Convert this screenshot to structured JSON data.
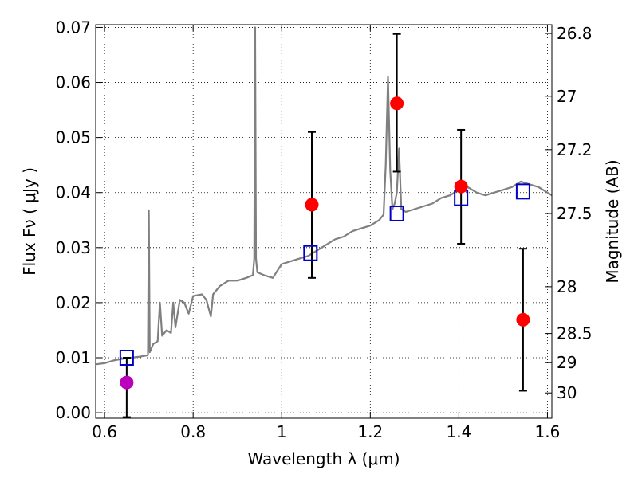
{
  "chart_data": {
    "type": "scatter",
    "xlabel": "Wavelength  λ (μm)",
    "ylabel": "Flux  Fν  ( μJy )",
    "y2label": "Magnitude (AB)",
    "xlim": [
      0.58,
      1.61
    ],
    "ylim": [
      -0.001,
      0.0705
    ],
    "grid": true,
    "x_ticks": [
      0.6,
      0.8,
      1.0,
      1.2,
      1.4,
      1.6
    ],
    "x_tick_labels": [
      "0.6",
      "0.8",
      "1",
      "1.2",
      "1.4",
      "1.6"
    ],
    "y_ticks": [
      0.0,
      0.01,
      0.02,
      0.03,
      0.04,
      0.05,
      0.06,
      0.07
    ],
    "y_tick_labels": [
      "0.00",
      "0.01",
      "0.02",
      "0.03",
      "0.04",
      "0.05",
      "0.06",
      "0.07"
    ],
    "y2_ticks": [
      {
        "label": "26.8",
        "flux": 0.0689
      },
      {
        "label": "27",
        "flux": 0.0575
      },
      {
        "label": "27.2",
        "flux": 0.0478
      },
      {
        "label": "27.5",
        "flux": 0.0362
      },
      {
        "label": "28",
        "flux": 0.0229
      },
      {
        "label": "28.5",
        "flux": 0.0144
      },
      {
        "label": "29",
        "flux": 0.0091
      },
      {
        "label": "30",
        "flux": 0.0036
      }
    ],
    "series": [
      {
        "role": "model-spectrum",
        "color": "#808080",
        "points": [
          [
            0.58,
            0.0088
          ],
          [
            0.6,
            0.009
          ],
          [
            0.62,
            0.0095
          ],
          [
            0.64,
            0.0098
          ],
          [
            0.66,
            0.01
          ],
          [
            0.68,
            0.0102
          ],
          [
            0.695,
            0.0104
          ],
          [
            0.698,
            0.0105
          ],
          [
            0.7,
            0.0368
          ],
          [
            0.702,
            0.011
          ],
          [
            0.71,
            0.0125
          ],
          [
            0.72,
            0.013
          ],
          [
            0.725,
            0.02
          ],
          [
            0.73,
            0.014
          ],
          [
            0.74,
            0.015
          ],
          [
            0.75,
            0.0145
          ],
          [
            0.755,
            0.02
          ],
          [
            0.76,
            0.0155
          ],
          [
            0.77,
            0.0205
          ],
          [
            0.78,
            0.02
          ],
          [
            0.79,
            0.018
          ],
          [
            0.8,
            0.0212
          ],
          [
            0.82,
            0.0215
          ],
          [
            0.83,
            0.0205
          ],
          [
            0.84,
            0.0175
          ],
          [
            0.845,
            0.0215
          ],
          [
            0.86,
            0.023
          ],
          [
            0.88,
            0.024
          ],
          [
            0.9,
            0.024
          ],
          [
            0.92,
            0.0245
          ],
          [
            0.935,
            0.025
          ],
          [
            0.938,
            0.028
          ],
          [
            0.94,
            0.07
          ],
          [
            0.942,
            0.028
          ],
          [
            0.945,
            0.0255
          ],
          [
            0.96,
            0.025
          ],
          [
            0.98,
            0.0245
          ],
          [
            1.0,
            0.027
          ],
          [
            1.02,
            0.0275
          ],
          [
            1.04,
            0.028
          ],
          [
            1.06,
            0.0285
          ],
          [
            1.08,
            0.0295
          ],
          [
            1.1,
            0.0305
          ],
          [
            1.12,
            0.0315
          ],
          [
            1.14,
            0.032
          ],
          [
            1.16,
            0.033
          ],
          [
            1.18,
            0.0335
          ],
          [
            1.2,
            0.034
          ],
          [
            1.22,
            0.035
          ],
          [
            1.23,
            0.036
          ],
          [
            1.235,
            0.045
          ],
          [
            1.24,
            0.061
          ],
          [
            1.245,
            0.044
          ],
          [
            1.25,
            0.037
          ],
          [
            1.255,
            0.038
          ],
          [
            1.26,
            0.04
          ],
          [
            1.265,
            0.048
          ],
          [
            1.27,
            0.037
          ],
          [
            1.28,
            0.0365
          ],
          [
            1.3,
            0.037
          ],
          [
            1.32,
            0.0375
          ],
          [
            1.34,
            0.038
          ],
          [
            1.36,
            0.039
          ],
          [
            1.38,
            0.0395
          ],
          [
            1.4,
            0.0405
          ],
          [
            1.42,
            0.041
          ],
          [
            1.44,
            0.04
          ],
          [
            1.46,
            0.0395
          ],
          [
            1.48,
            0.04
          ],
          [
            1.5,
            0.0405
          ],
          [
            1.52,
            0.041
          ],
          [
            1.54,
            0.042
          ],
          [
            1.56,
            0.0415
          ],
          [
            1.58,
            0.041
          ],
          [
            1.6,
            0.04
          ],
          [
            1.61,
            0.0395
          ]
        ]
      },
      {
        "role": "model-photometry",
        "marker": "open-square",
        "color": "#0000cc",
        "points": [
          [
            0.65,
            0.01
          ],
          [
            1.065,
            0.029
          ],
          [
            1.26,
            0.0362
          ],
          [
            1.405,
            0.039
          ],
          [
            1.545,
            0.0402
          ]
        ]
      },
      {
        "role": "observed-photometry",
        "marker": "filled-circle",
        "color": "#ff0000",
        "points": [
          {
            "x": 1.068,
            "y": 0.0378,
            "ylo": 0.0245,
            "yhi": 0.051
          },
          {
            "x": 1.26,
            "y": 0.0562,
            "ylo": 0.0438,
            "yhi": 0.0688
          },
          {
            "x": 1.405,
            "y": 0.0411,
            "ylo": 0.0307,
            "yhi": 0.0514
          },
          {
            "x": 1.545,
            "y": 0.0169,
            "ylo": 0.004,
            "yhi": 0.0298
          }
        ]
      },
      {
        "role": "upper-limit-photometry",
        "marker": "filled-circle",
        "color": "#bb00bb",
        "points": [
          {
            "x": 0.65,
            "y": 0.0055,
            "ylo": -0.0008,
            "yhi": 0.01
          }
        ]
      }
    ]
  }
}
